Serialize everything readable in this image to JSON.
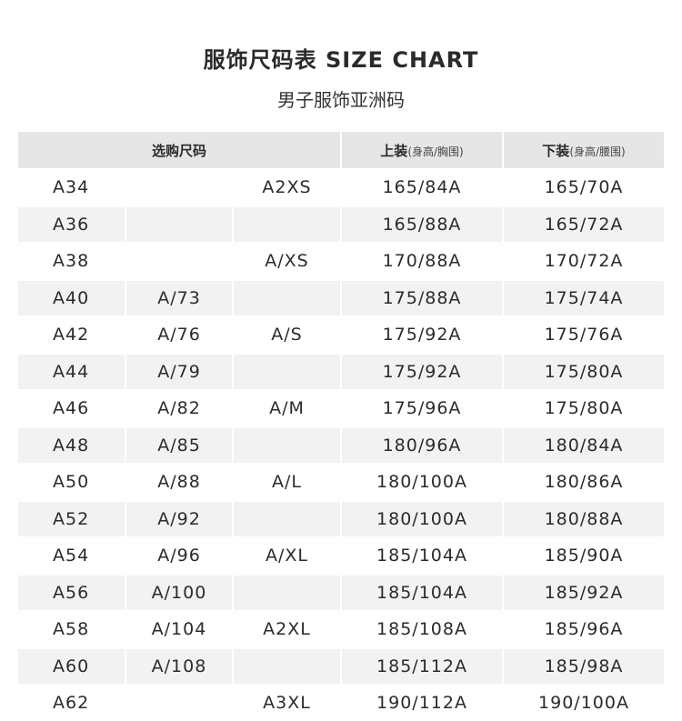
{
  "title": "服饰尺码表 SIZE CHART",
  "subtitle": "男子服饰亚洲码",
  "header": {
    "size": "选购尺码",
    "top": "上装",
    "top_note": "(身高/胸围)",
    "bottom": "下装",
    "bottom_note": "(身高/腰围)"
  },
  "rows": [
    [
      "A34",
      "",
      "A2XS",
      "165/84A",
      "165/70A"
    ],
    [
      "A36",
      "",
      "",
      "165/88A",
      "165/72A"
    ],
    [
      "A38",
      "",
      "A/XS",
      "170/88A",
      "170/72A"
    ],
    [
      "A40",
      "A/73",
      "",
      "175/88A",
      "175/74A"
    ],
    [
      "A42",
      "A/76",
      "A/S",
      "175/92A",
      "175/76A"
    ],
    [
      "A44",
      "A/79",
      "",
      "175/92A",
      "175/80A"
    ],
    [
      "A46",
      "A/82",
      "A/M",
      "175/96A",
      "175/80A"
    ],
    [
      "A48",
      "A/85",
      "",
      "180/96A",
      "180/84A"
    ],
    [
      "A50",
      "A/88",
      "A/L",
      "180/100A",
      "180/86A"
    ],
    [
      "A52",
      "A/92",
      "",
      "180/100A",
      "180/88A"
    ],
    [
      "A54",
      "A/96",
      "A/XL",
      "185/104A",
      "185/90A"
    ],
    [
      "A56",
      "A/100",
      "",
      "185/104A",
      "185/92A"
    ],
    [
      "A58",
      "A/104",
      "A2XL",
      "185/108A",
      "185/96A"
    ],
    [
      "A60",
      "A/108",
      "",
      "185/112A",
      "185/98A"
    ],
    [
      "A62",
      "",
      "A3XL",
      "190/112A",
      "190/100A"
    ]
  ]
}
